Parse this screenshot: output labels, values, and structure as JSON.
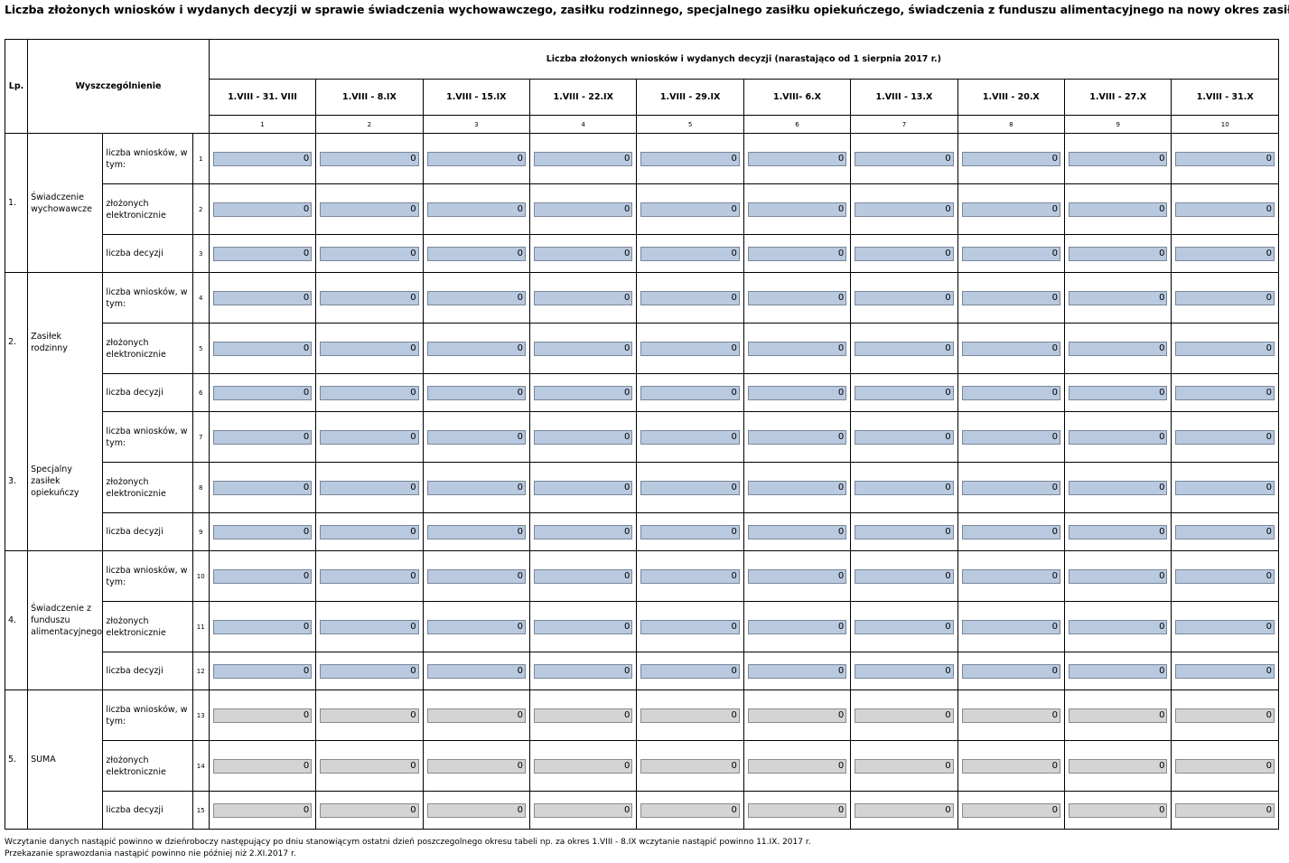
{
  "title": "Liczba złożonych wniosków i wydanych decyzji w sprawie  świadczenia wychowawczego, zasiłku rodzinnego, specjalnego zasiłku opiekuńczego, świadczenia z funduszu alimentacyjnego na nowy okres zasiłkowy",
  "header": {
    "lp": "Lp.",
    "wyszczegolnienie": "Wyszczególnienie",
    "group": "Liczba złożonych wniosków i wydanych decyzji (narastająco od 1 sierpnia 2017 r.)",
    "periods": [
      "1.VIII - 31. VIII",
      "1.VIII - 8.IX",
      "1.VIII - 15.IX",
      "1.VIII - 22.IX",
      "1.VIII - 29.IX",
      "1.VIII- 6.X",
      "1.VIII - 13.X",
      "1.VIII - 20.X",
      "1.VIII - 27.X",
      "1.VIII - 31.X"
    ],
    "col_numbers": [
      "1",
      "2",
      "3",
      "4",
      "5",
      "6",
      "7",
      "8",
      "9",
      "10"
    ]
  },
  "sections": [
    {
      "lp": "1.",
      "name": "Świadczenie wychowawcze",
      "rows": [
        {
          "label": "liczba wniosków, w tym:",
          "num": "1",
          "values": [
            "0",
            "0",
            "0",
            "0",
            "0",
            "0",
            "0",
            "0",
            "0",
            "0"
          ]
        },
        {
          "label": "złożonych elektronicznie",
          "num": "2",
          "values": [
            "0",
            "0",
            "0",
            "0",
            "0",
            "0",
            "0",
            "0",
            "0",
            "0"
          ]
        },
        {
          "label": "liczba decyzji",
          "num": "3",
          "values": [
            "0",
            "0",
            "0",
            "0",
            "0",
            "0",
            "0",
            "0",
            "0",
            "0"
          ]
        }
      ]
    },
    {
      "lp": "2.",
      "name": "Zasiłek rodzinny",
      "rows": [
        {
          "label": "liczba wniosków, w tym:",
          "num": "4",
          "values": [
            "0",
            "0",
            "0",
            "0",
            "0",
            "0",
            "0",
            "0",
            "0",
            "0"
          ]
        },
        {
          "label": "złożonych elektronicznie",
          "num": "5",
          "values": [
            "0",
            "0",
            "0",
            "0",
            "0",
            "0",
            "0",
            "0",
            "0",
            "0"
          ]
        },
        {
          "label": "liczba decyzji",
          "num": "6",
          "values": [
            "0",
            "0",
            "0",
            "0",
            "0",
            "0",
            "0",
            "0",
            "0",
            "0"
          ]
        }
      ]
    },
    {
      "lp": "3.",
      "name": "Specjalny zasiłek opiekuńczy",
      "rows": [
        {
          "label": "liczba wniosków, w tym:",
          "num": "7",
          "values": [
            "0",
            "0",
            "0",
            "0",
            "0",
            "0",
            "0",
            "0",
            "0",
            "0"
          ]
        },
        {
          "label": "złożonych elektronicznie",
          "num": "8",
          "values": [
            "0",
            "0",
            "0",
            "0",
            "0",
            "0",
            "0",
            "0",
            "0",
            "0"
          ]
        },
        {
          "label": "liczba decyzji",
          "num": "9",
          "values": [
            "0",
            "0",
            "0",
            "0",
            "0",
            "0",
            "0",
            "0",
            "0",
            "0"
          ]
        }
      ]
    },
    {
      "lp": "4.",
      "name": "Świadczenie z funduszu alimentacyjnego",
      "rows": [
        {
          "label": "liczba wniosków, w tym:",
          "num": "10",
          "values": [
            "0",
            "0",
            "0",
            "0",
            "0",
            "0",
            "0",
            "0",
            "0",
            "0"
          ]
        },
        {
          "label": "złożonych elektronicznie",
          "num": "11",
          "values": [
            "0",
            "0",
            "0",
            "0",
            "0",
            "0",
            "0",
            "0",
            "0",
            "0"
          ]
        },
        {
          "label": "liczba decyzji",
          "num": "12",
          "values": [
            "0",
            "0",
            "0",
            "0",
            "0",
            "0",
            "0",
            "0",
            "0",
            "0"
          ]
        }
      ]
    },
    {
      "lp": "5.",
      "name": "SUMA",
      "readonly": true,
      "rows": [
        {
          "label": "liczba wniosków, w tym:",
          "num": "13",
          "values": [
            "0",
            "0",
            "0",
            "0",
            "0",
            "0",
            "0",
            "0",
            "0",
            "0"
          ]
        },
        {
          "label": "złożonych elektronicznie",
          "num": "14",
          "values": [
            "0",
            "0",
            "0",
            "0",
            "0",
            "0",
            "0",
            "0",
            "0",
            "0"
          ]
        },
        {
          "label": "liczba decyzji",
          "num": "15",
          "values": [
            "0",
            "0",
            "0",
            "0",
            "0",
            "0",
            "0",
            "0",
            "0",
            "0"
          ]
        }
      ]
    }
  ],
  "footnotes": [
    "Wczytanie danych nastąpić powinno w dzieńroboczy następujący po dniu stanowiącym ostatni dzień poszczegolnego okresu tabeli np. za okres 1.VIII - 8.IX wczytanie nastąpić powinno 11.IX. 2017 r.",
    "Przekazanie sprawozdania nastąpić powinno nie później niż 2.XI.2017 r."
  ],
  "colors": {
    "input_fill": "#b9c9df",
    "sum_fill": "#d4d4d4"
  }
}
